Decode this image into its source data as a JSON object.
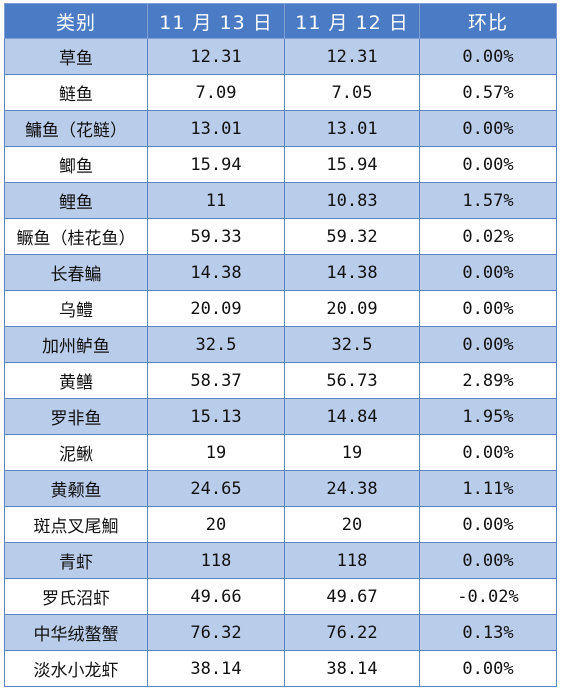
{
  "table": {
    "headers": [
      "类别",
      "11 月 13 日",
      "11 月 12 日",
      "环比"
    ],
    "rows": [
      [
        "草鱼",
        "12.31",
        "12.31",
        "0.00%"
      ],
      [
        "鲢鱼",
        "7.09",
        "7.05",
        "0.57%"
      ],
      [
        "鳙鱼（花鲢）",
        "13.01",
        "13.01",
        "0.00%"
      ],
      [
        "鲫鱼",
        "15.94",
        "15.94",
        "0.00%"
      ],
      [
        "鲤鱼",
        "11",
        "10.83",
        "1.57%"
      ],
      [
        "鳜鱼（桂花鱼）",
        "59.33",
        "59.32",
        "0.02%"
      ],
      [
        "长春鳊",
        "14.38",
        "14.38",
        "0.00%"
      ],
      [
        "乌鳢",
        "20.09",
        "20.09",
        "0.00%"
      ],
      [
        "加州鲈鱼",
        "32.5",
        "32.5",
        "0.00%"
      ],
      [
        "黄鳝",
        "58.37",
        "56.73",
        "2.89%"
      ],
      [
        "罗非鱼",
        "15.13",
        "14.84",
        "1.95%"
      ],
      [
        "泥鳅",
        "19",
        "19",
        "0.00%"
      ],
      [
        "黄颡鱼",
        "24.65",
        "24.38",
        "1.11%"
      ],
      [
        "斑点叉尾鮰",
        "20",
        "20",
        "0.00%"
      ],
      [
        "青虾",
        "118",
        "118",
        "0.00%"
      ],
      [
        "罗氏沼虾",
        "49.66",
        "49.67",
        "-0.02%"
      ],
      [
        "中华绒螯蟹",
        "76.32",
        "76.22",
        "0.13%"
      ],
      [
        "淡水小龙虾",
        "38.14",
        "38.14",
        "0.00%"
      ]
    ]
  },
  "colors": {
    "header_bg": "#4a7bc4",
    "band_bg": "#b9cce9",
    "border": "#5b84c1"
  }
}
